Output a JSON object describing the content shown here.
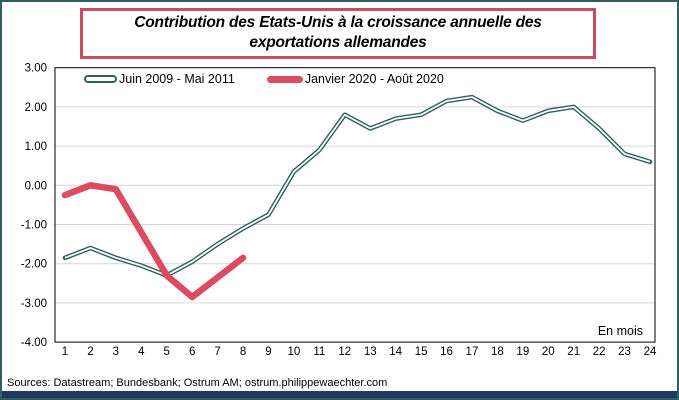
{
  "frame": {
    "border_color": "#315F5D",
    "bottom_bar_color": "#1F3864"
  },
  "title": {
    "text": "Contribution des Etats-Unis à la croissance annuelle des exportations allemandes",
    "border_color": "#CD4B5F"
  },
  "legend": {
    "items": [
      {
        "label": "Juin 2009 - Mai 2011",
        "style": "outline",
        "color": "#2F5F5F"
      },
      {
        "label": "Janvier 2020 - Août 2020",
        "style": "solid",
        "color": "#DB4B62"
      }
    ]
  },
  "footer": {
    "sources": "Sources: Datastream; Bundesbank; Ostrum AM; ostrum.philippewaechter.com"
  },
  "chart_data": {
    "type": "line",
    "title": "Contribution des Etats-Unis à la croissance annuelle des exportations allemandes",
    "x": [
      1,
      2,
      3,
      4,
      5,
      6,
      7,
      8,
      9,
      10,
      11,
      12,
      13,
      14,
      15,
      16,
      17,
      18,
      19,
      20,
      21,
      22,
      23,
      24
    ],
    "xlabel": "En mois",
    "ylim": [
      -4,
      3
    ],
    "yticks": [
      "3.00",
      "2.00",
      "1.00",
      "0.00",
      "-1.00",
      "-2.00",
      "-3.00",
      "-4.00"
    ],
    "grid": true,
    "gridline_color": "#D6D6D6",
    "legend_position": "top-left-inside",
    "series": [
      {
        "name": "Juin 2009 - Mai 2011",
        "color": "#2F5F5F",
        "line_style": "double-outline",
        "values": [
          -1.85,
          -1.6,
          -1.85,
          -2.05,
          -2.3,
          -1.95,
          -1.5,
          -1.1,
          -0.75,
          0.35,
          0.9,
          1.8,
          1.45,
          1.7,
          1.8,
          2.15,
          2.25,
          1.9,
          1.65,
          1.9,
          2.0,
          1.45,
          0.8,
          0.6
        ]
      },
      {
        "name": "Janvier 2020 - Août 2020",
        "color": "#DB4B62",
        "line_style": "solid-thick",
        "values": [
          -0.25,
          0.0,
          -0.1,
          -1.2,
          -2.3,
          -2.85,
          -2.35,
          -1.85
        ]
      }
    ]
  }
}
